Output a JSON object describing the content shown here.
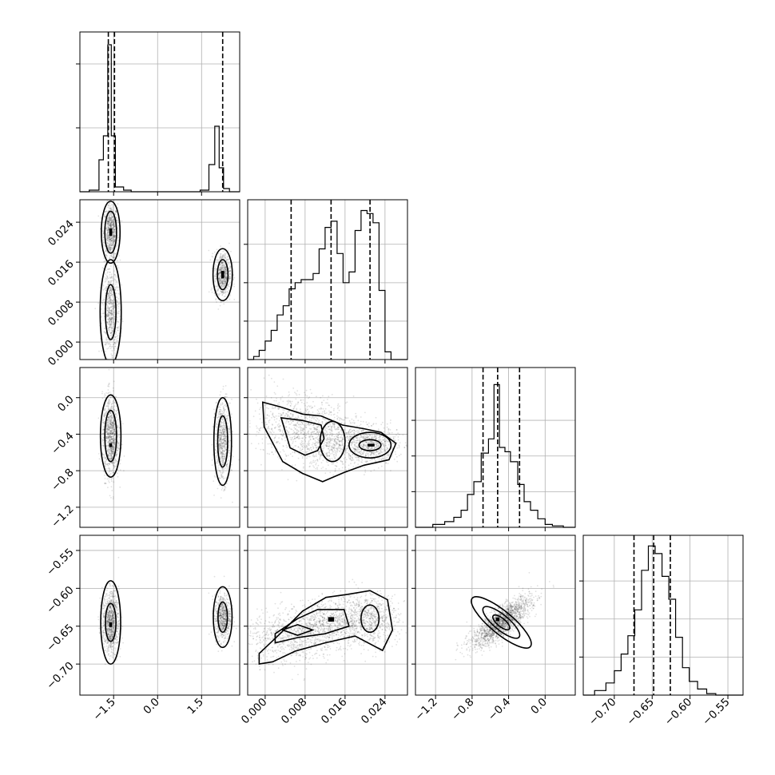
{
  "chart_data": {
    "type": "corner",
    "grid": true,
    "parameters": [
      {
        "range": [
          -2.65,
          2.8
        ],
        "ticks": [
          {
            "value": -1.5,
            "label": "−1.5"
          },
          {
            "value": 0.0,
            "label": "0.0"
          },
          {
            "value": 1.5,
            "label": "1.5"
          }
        ],
        "quantiles": [
          -1.68,
          -1.47,
          2.22
        ],
        "hist": {
          "edges": [
            -2.65,
            -2.33,
            -2.0,
            -1.85,
            -1.7,
            -1.58,
            -1.44,
            -1.16,
            -0.9,
            -0.5,
            1.45,
            1.75,
            1.95,
            2.1,
            2.25,
            2.45,
            2.8
          ],
          "heights": [
            0.0,
            0.01,
            0.2,
            0.35,
            0.92,
            0.35,
            0.03,
            0.01,
            0.0,
            0.0,
            0.01,
            0.17,
            0.41,
            0.15,
            0.02,
            0.0
          ],
          "ymax": 1.0,
          "yticks": [
            0.4,
            0.8
          ]
        }
      },
      {
        "range": [
          -0.0035,
          0.0285
        ],
        "ticks": [
          {
            "value": 0.0,
            "label": "0.000"
          },
          {
            "value": 0.008,
            "label": "0.008"
          },
          {
            "value": 0.016,
            "label": "0.016"
          },
          {
            "value": 0.024,
            "label": "0.024"
          }
        ],
        "quantiles": [
          0.0052,
          0.0132,
          0.021
        ],
        "hist": {
          "edges": [
            -0.0035,
            -0.0023,
            -0.0012,
            0.0,
            0.0012,
            0.0024,
            0.0036,
            0.0048,
            0.006,
            0.0072,
            0.0084,
            0.0096,
            0.0108,
            0.012,
            0.0132,
            0.0144,
            0.0156,
            0.0168,
            0.018,
            0.0192,
            0.0204,
            0.0216,
            0.0228,
            0.024,
            0.0252,
            0.0264,
            0.0285
          ],
          "heights": [
            0.0,
            0.02,
            0.06,
            0.12,
            0.19,
            0.29,
            0.35,
            0.46,
            0.5,
            0.52,
            0.52,
            0.56,
            0.72,
            0.86,
            0.9,
            0.69,
            0.5,
            0.57,
            0.84,
            0.97,
            0.95,
            0.89,
            0.45,
            0.05,
            0.0,
            0.0
          ],
          "ymax": 1.04,
          "yticks": [
            0.25,
            0.5,
            0.75
          ]
        }
      },
      {
        "range": [
          -1.42,
          0.33
        ],
        "ticks": [
          {
            "value": -1.2,
            "label": "−1.2"
          },
          {
            "value": -0.8,
            "label": "−0.8"
          },
          {
            "value": -0.4,
            "label": "−0.4"
          },
          {
            "value": 0.0,
            "label": "0.0"
          }
        ],
        "quantiles": [
          -0.68,
          -0.52,
          -0.28
        ],
        "hist": {
          "edges": [
            -1.42,
            -1.23,
            -1.1,
            -1.0,
            -0.92,
            -0.85,
            -0.78,
            -0.7,
            -0.62,
            -0.56,
            -0.5,
            -0.44,
            -0.38,
            -0.3,
            -0.23,
            -0.16,
            -0.08,
            0.0,
            0.08,
            0.2,
            0.33
          ],
          "heights": [
            0.0,
            0.02,
            0.04,
            0.07,
            0.12,
            0.23,
            0.32,
            0.52,
            0.62,
            1.0,
            0.56,
            0.53,
            0.46,
            0.3,
            0.18,
            0.12,
            0.06,
            0.02,
            0.01,
            0.0
          ],
          "ymax": 1.12,
          "yticks": [
            0.25,
            0.5,
            0.75
          ]
        }
      },
      {
        "range": [
          -0.741,
          -0.53
        ],
        "ticks": [
          {
            "value": -0.7,
            "label": "−0.70"
          },
          {
            "value": -0.65,
            "label": "−0.65"
          },
          {
            "value": -0.6,
            "label": "−0.60"
          },
          {
            "value": -0.55,
            "label": "−0.55"
          }
        ],
        "yticks_scatter": [
          {
            "value": -0.7,
            "label": "−0.70"
          },
          {
            "value": -0.65,
            "label": "−0.65"
          },
          {
            "value": -0.6,
            "label": "−0.60"
          },
          {
            "value": -0.55,
            "label": "−0.55"
          }
        ],
        "quantiles": [
          -0.674,
          -0.648,
          -0.626
        ],
        "hist": {
          "edges": [
            -0.741,
            -0.726,
            -0.711,
            -0.7,
            -0.691,
            -0.682,
            -0.673,
            -0.664,
            -0.655,
            -0.646,
            -0.637,
            -0.628,
            -0.619,
            -0.61,
            -0.601,
            -0.59,
            -0.578,
            -0.566,
            -0.55,
            -0.53
          ],
          "heights": [
            0.0,
            0.03,
            0.08,
            0.16,
            0.27,
            0.39,
            0.56,
            0.82,
            0.98,
            0.93,
            0.78,
            0.63,
            0.38,
            0.18,
            0.09,
            0.04,
            0.01,
            0.0,
            0.0
          ],
          "ymax": 1.05,
          "yticks": [
            0.25,
            0.5,
            0.75
          ]
        }
      }
    ],
    "scatter_ylims": [
      null,
      [
        -0.0035,
        0.0285
      ],
      [
        -1.42,
        0.33
      ],
      [
        -0.741,
        -0.53
      ]
    ],
    "panels": [
      {
        "row": 1,
        "col": 0,
        "clusters": [
          {
            "cx": -1.6,
            "cy": 0.022,
            "sx": 0.12,
            "sy": 0.0028,
            "n": 700,
            "levels": [
              {
                "rx": 0.2,
                "ry": 0.0042
              },
              {
                "rx": 0.32,
                "ry": 0.0062
              }
            ]
          },
          {
            "cx": -1.6,
            "cy": 0.006,
            "sx": 0.14,
            "sy": 0.0045,
            "n": 700,
            "levels": [
              {
                "rx": 0.18,
                "ry": 0.0055
              },
              {
                "rx": 0.36,
                "ry": 0.0105
              }
            ]
          },
          {
            "cx": 2.22,
            "cy": 0.0135,
            "sx": 0.14,
            "sy": 0.0023,
            "n": 650,
            "levels": [
              {
                "rx": 0.18,
                "ry": 0.003
              },
              {
                "rx": 0.33,
                "ry": 0.0052
              }
            ]
          }
        ],
        "cores": [
          {
            "x": -1.6,
            "y": 0.022,
            "rx": 0.1,
            "ry": 0.0015
          },
          {
            "x": 2.22,
            "y": 0.0135,
            "rx": 0.1,
            "ry": 0.0015
          }
        ]
      },
      {
        "row": 2,
        "col": 0,
        "clusters": [
          {
            "cx": -1.6,
            "cy": -0.42,
            "sx": 0.14,
            "sy": 0.22,
            "n": 1000,
            "levels": [
              {
                "rx": 0.2,
                "ry": 0.28
              },
              {
                "rx": 0.35,
                "ry": 0.45
              }
            ]
          },
          {
            "cx": 2.22,
            "cy": -0.48,
            "sx": 0.13,
            "sy": 0.22,
            "n": 700,
            "levels": [
              {
                "rx": 0.17,
                "ry": 0.28
              },
              {
                "rx": 0.3,
                "ry": 0.48
              }
            ]
          }
        ],
        "cores": [
          {
            "x": -1.6,
            "y": -0.52,
            "rx": 0.1,
            "ry": 0.04
          }
        ]
      },
      {
        "row": 2,
        "col": 1,
        "clusters": [
          {
            "cx": 0.006,
            "cy": -0.3,
            "sx": 0.0042,
            "sy": 0.18,
            "n": 700,
            "levels": []
          },
          {
            "cx": 0.0135,
            "cy": -0.48,
            "sx": 0.0035,
            "sy": 0.15,
            "n": 700,
            "levels": [
              {
                "rx": 0.0025,
                "ry": 0.22
              }
            ]
          },
          {
            "cx": 0.021,
            "cy": -0.52,
            "sx": 0.0028,
            "sy": 0.1,
            "n": 700,
            "levels": [
              {
                "rx": 0.0022,
                "ry": 0.06
              },
              {
                "rx": 0.0042,
                "ry": 0.14
              }
            ]
          }
        ],
        "cores": [
          {
            "x": 0.0212,
            "y": -0.52,
            "rx": 0.0014,
            "ry": 0.03
          }
        ],
        "paths": [
          [
            [
              -0.0005,
              -0.05
            ],
            [
              0.003,
              -0.1
            ],
            [
              0.0075,
              -0.18
            ],
            [
              0.0112,
              -0.2
            ],
            [
              0.0155,
              -0.3
            ],
            [
              0.0198,
              -0.34
            ],
            [
              0.0232,
              -0.38
            ],
            [
              0.0262,
              -0.5
            ],
            [
              0.0248,
              -0.68
            ],
            [
              0.0198,
              -0.74
            ],
            [
              0.0158,
              -0.82
            ],
            [
              0.0115,
              -0.92
            ],
            [
              0.0075,
              -0.83
            ],
            [
              0.0035,
              -0.7
            ],
            [
              -0.0002,
              -0.32
            ]
          ],
          [
            [
              0.0032,
              -0.22
            ],
            [
              0.0075,
              -0.25
            ],
            [
              0.0112,
              -0.3
            ],
            [
              0.0118,
              -0.45
            ],
            [
              0.0105,
              -0.58
            ],
            [
              0.008,
              -0.63
            ],
            [
              0.005,
              -0.55
            ]
          ]
        ]
      },
      {
        "row": 3,
        "col": 0,
        "clusters": [
          {
            "cx": -1.6,
            "cy": -0.645,
            "sx": 0.14,
            "sy": 0.02,
            "n": 1000,
            "levels": [
              {
                "rx": 0.18,
                "ry": 0.025
              },
              {
                "rx": 0.34,
                "ry": 0.055
              }
            ]
          },
          {
            "cx": 2.22,
            "cy": -0.638,
            "sx": 0.14,
            "sy": 0.015,
            "n": 700,
            "levels": [
              {
                "rx": 0.16,
                "ry": 0.02
              },
              {
                "rx": 0.32,
                "ry": 0.04
              }
            ]
          }
        ],
        "cores": [
          {
            "x": -1.6,
            "y": -0.648,
            "rx": 0.1,
            "ry": 0.006
          }
        ]
      },
      {
        "row": 3,
        "col": 1,
        "clusters": [
          {
            "cx": 0.005,
            "cy": -0.665,
            "sx": 0.0045,
            "sy": 0.018,
            "n": 700,
            "levels": []
          },
          {
            "cx": 0.0132,
            "cy": -0.645,
            "sx": 0.0035,
            "sy": 0.015,
            "n": 700,
            "levels": []
          },
          {
            "cx": 0.021,
            "cy": -0.64,
            "sx": 0.0028,
            "sy": 0.017,
            "n": 700,
            "levels": [
              {
                "rx": 0.0018,
                "ry": 0.018
              }
            ]
          }
        ],
        "cores": [
          {
            "x": 0.0132,
            "y": -0.641,
            "rx": 0.0012,
            "ry": 0.006
          }
        ],
        "paths": [
          [
            [
              -0.0012,
              -0.686
            ],
            [
              0.003,
              -0.66
            ],
            [
              0.0075,
              -0.63
            ],
            [
              0.0122,
              -0.612
            ],
            [
              0.0165,
              -0.608
            ],
            [
              0.021,
              -0.603
            ],
            [
              0.0245,
              -0.615
            ],
            [
              0.0255,
              -0.655
            ],
            [
              0.0235,
              -0.682
            ],
            [
              0.018,
              -0.663
            ],
            [
              0.012,
              -0.672
            ],
            [
              0.006,
              -0.683
            ],
            [
              0.0015,
              -0.697
            ],
            [
              -0.0012,
              -0.7
            ]
          ],
          [
            [
              0.002,
              -0.66
            ],
            [
              0.0065,
              -0.64
            ],
            [
              0.0105,
              -0.628
            ],
            [
              0.0158,
              -0.628
            ],
            [
              0.0168,
              -0.65
            ],
            [
              0.012,
              -0.66
            ],
            [
              0.0065,
              -0.665
            ],
            [
              0.002,
              -0.672
            ]
          ],
          [
            [
              0.0035,
              -0.655
            ],
            [
              0.0065,
              -0.648
            ],
            [
              0.0095,
              -0.655
            ],
            [
              0.0065,
              -0.662
            ]
          ]
        ]
      },
      {
        "row": 3,
        "col": 2,
        "clusters": [
          {
            "cx": -0.48,
            "cy": -0.645,
            "sx": 0.16,
            "sy": 0.016,
            "rho": 0.8,
            "n": 1800,
            "levels": [
              {
                "rx": 0.1,
                "ry": 0.012
              },
              {
                "rx": 0.22,
                "ry": 0.022
              },
              {
                "rx": 0.36,
                "ry": 0.033
              }
            ]
          }
        ],
        "cores": [
          {
            "x": -0.52,
            "y": -0.641,
            "rx": 0.04,
            "ry": 0.005
          }
        ]
      }
    ]
  }
}
